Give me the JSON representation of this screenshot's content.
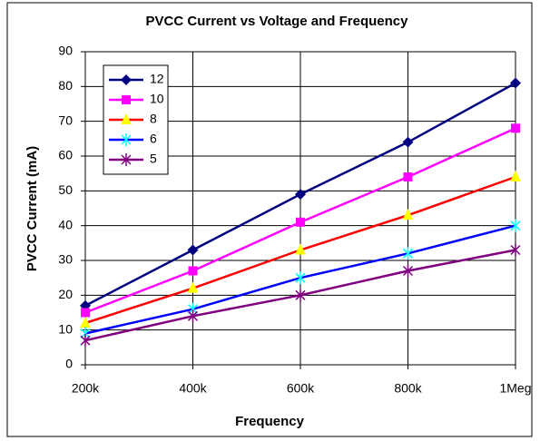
{
  "chart_data": {
    "type": "line",
    "title": "PVCC Current vs Voltage and Frequency",
    "x_label": "Frequency",
    "y_label": "PVCC Current (mA)",
    "categories": [
      "200k",
      "400k",
      "600k",
      "800k",
      "1Meg"
    ],
    "series": [
      {
        "name": "12",
        "color": "#000080",
        "marker_color": "#000080",
        "marker": "diamond",
        "values": [
          17,
          33,
          49,
          64,
          81
        ]
      },
      {
        "name": "10",
        "color": "#ff00ff",
        "marker_color": "#ff00ff",
        "marker": "square",
        "values": [
          15,
          27,
          41,
          54,
          68
        ]
      },
      {
        "name": "8",
        "color": "#ff0000",
        "marker_color": "#ffff00",
        "marker": "triangle",
        "values": [
          12,
          22,
          33,
          43,
          54
        ]
      },
      {
        "name": "6",
        "color": "#0000ff",
        "marker_color": "#00ffff",
        "marker": "star",
        "values": [
          9,
          16,
          25,
          32,
          40
        ]
      },
      {
        "name": "5",
        "color": "#800080",
        "marker_color": "#800080",
        "marker": "star",
        "values": [
          7,
          14,
          20,
          27,
          33
        ]
      }
    ],
    "ylim": [
      0,
      90
    ],
    "yticks": [
      0,
      10,
      20,
      30,
      40,
      50,
      60,
      70,
      80,
      90
    ],
    "grid": true,
    "legend": "upper left"
  }
}
